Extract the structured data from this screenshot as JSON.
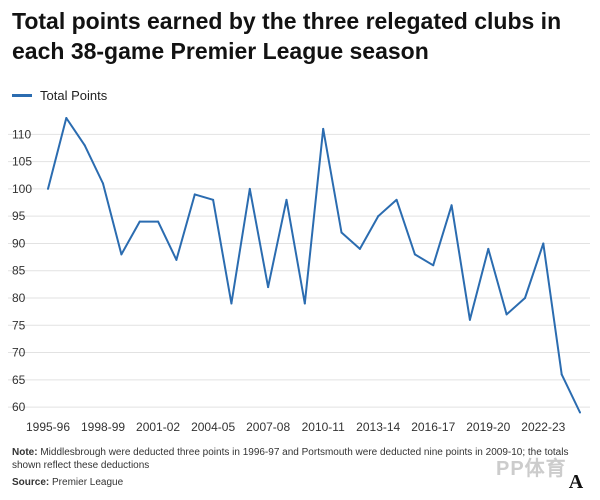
{
  "chart_data": {
    "type": "line",
    "title": "Total points earned by the three relegated clubs in each 38-game Premier League season",
    "x_tick_labels": [
      "1995-96",
      "1998-99",
      "2001-02",
      "2004-05",
      "2007-08",
      "2010-11",
      "2013-14",
      "2016-17",
      "2019-20",
      "2022-23"
    ],
    "y_ticks": [
      60,
      65,
      70,
      75,
      80,
      85,
      90,
      95,
      100,
      105,
      110
    ],
    "ylim": [
      58,
      113
    ],
    "grid": "horizontal",
    "legend_position": "top-left",
    "series": [
      {
        "name": "Total Points",
        "color": "#2b6cb0",
        "x": [
          "1995-96",
          "1996-97",
          "1997-98",
          "1998-99",
          "1999-00",
          "2000-01",
          "2001-02",
          "2002-03",
          "2003-04",
          "2004-05",
          "2005-06",
          "2006-07",
          "2007-08",
          "2008-09",
          "2009-10",
          "2010-11",
          "2011-12",
          "2012-13",
          "2013-14",
          "2014-15",
          "2015-16",
          "2016-17",
          "2017-18",
          "2018-19",
          "2019-20",
          "2020-21",
          "2021-22",
          "2022-23",
          "2023-24",
          "2024-25"
        ],
        "values": [
          100,
          113,
          108,
          101,
          88,
          94,
          94,
          87,
          99,
          98,
          79,
          100,
          82,
          98,
          79,
          111,
          92,
          89,
          95,
          98,
          88,
          86,
          97,
          76,
          89,
          77,
          80,
          90,
          66,
          59
        ]
      }
    ]
  },
  "legend": {
    "label": "Total Points"
  },
  "note": {
    "label": "Note:",
    "text": " Middlesbrough were deducted three points in 1996-97 and Portsmouth were deducted nine points in 2009-10; the totals shown reflect these deductions"
  },
  "source": {
    "label": "Source:",
    "text": " Premier League"
  },
  "watermark": "PP体育",
  "logo": "A"
}
